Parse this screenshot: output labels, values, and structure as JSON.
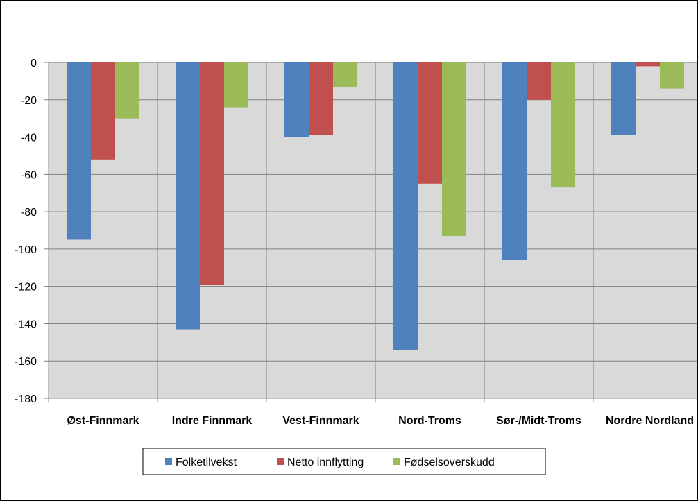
{
  "chart_data": {
    "type": "bar",
    "title": "",
    "xlabel": "",
    "ylabel": "",
    "categories": [
      "Øst-Finnmark",
      "Indre Finnmark",
      "Vest-Finnmark",
      "Nord-Troms",
      "Sør-/Midt-Troms",
      "Nordre Nordland"
    ],
    "series": [
      {
        "name": "Folketilvekst",
        "color": "#4F81BD",
        "values": [
          -95,
          -143,
          -40,
          -154,
          -106,
          -39
        ]
      },
      {
        "name": "Netto innflytting",
        "color": "#C0504D",
        "values": [
          -52,
          -119,
          -39,
          -65,
          -20,
          -2
        ]
      },
      {
        "name": "Fødselsoverskudd",
        "color": "#9BBB59",
        "values": [
          -30,
          -24,
          -13,
          -93,
          -67,
          -14
        ]
      }
    ],
    "ylim": [
      -180,
      0
    ],
    "yticks": [
      0,
      -20,
      -40,
      -60,
      -80,
      -100,
      -120,
      -140,
      -160,
      -180
    ],
    "grid": true,
    "legend_position": "bottom",
    "plot_background": "#D9D9D9",
    "gridline_color": "#808080"
  }
}
